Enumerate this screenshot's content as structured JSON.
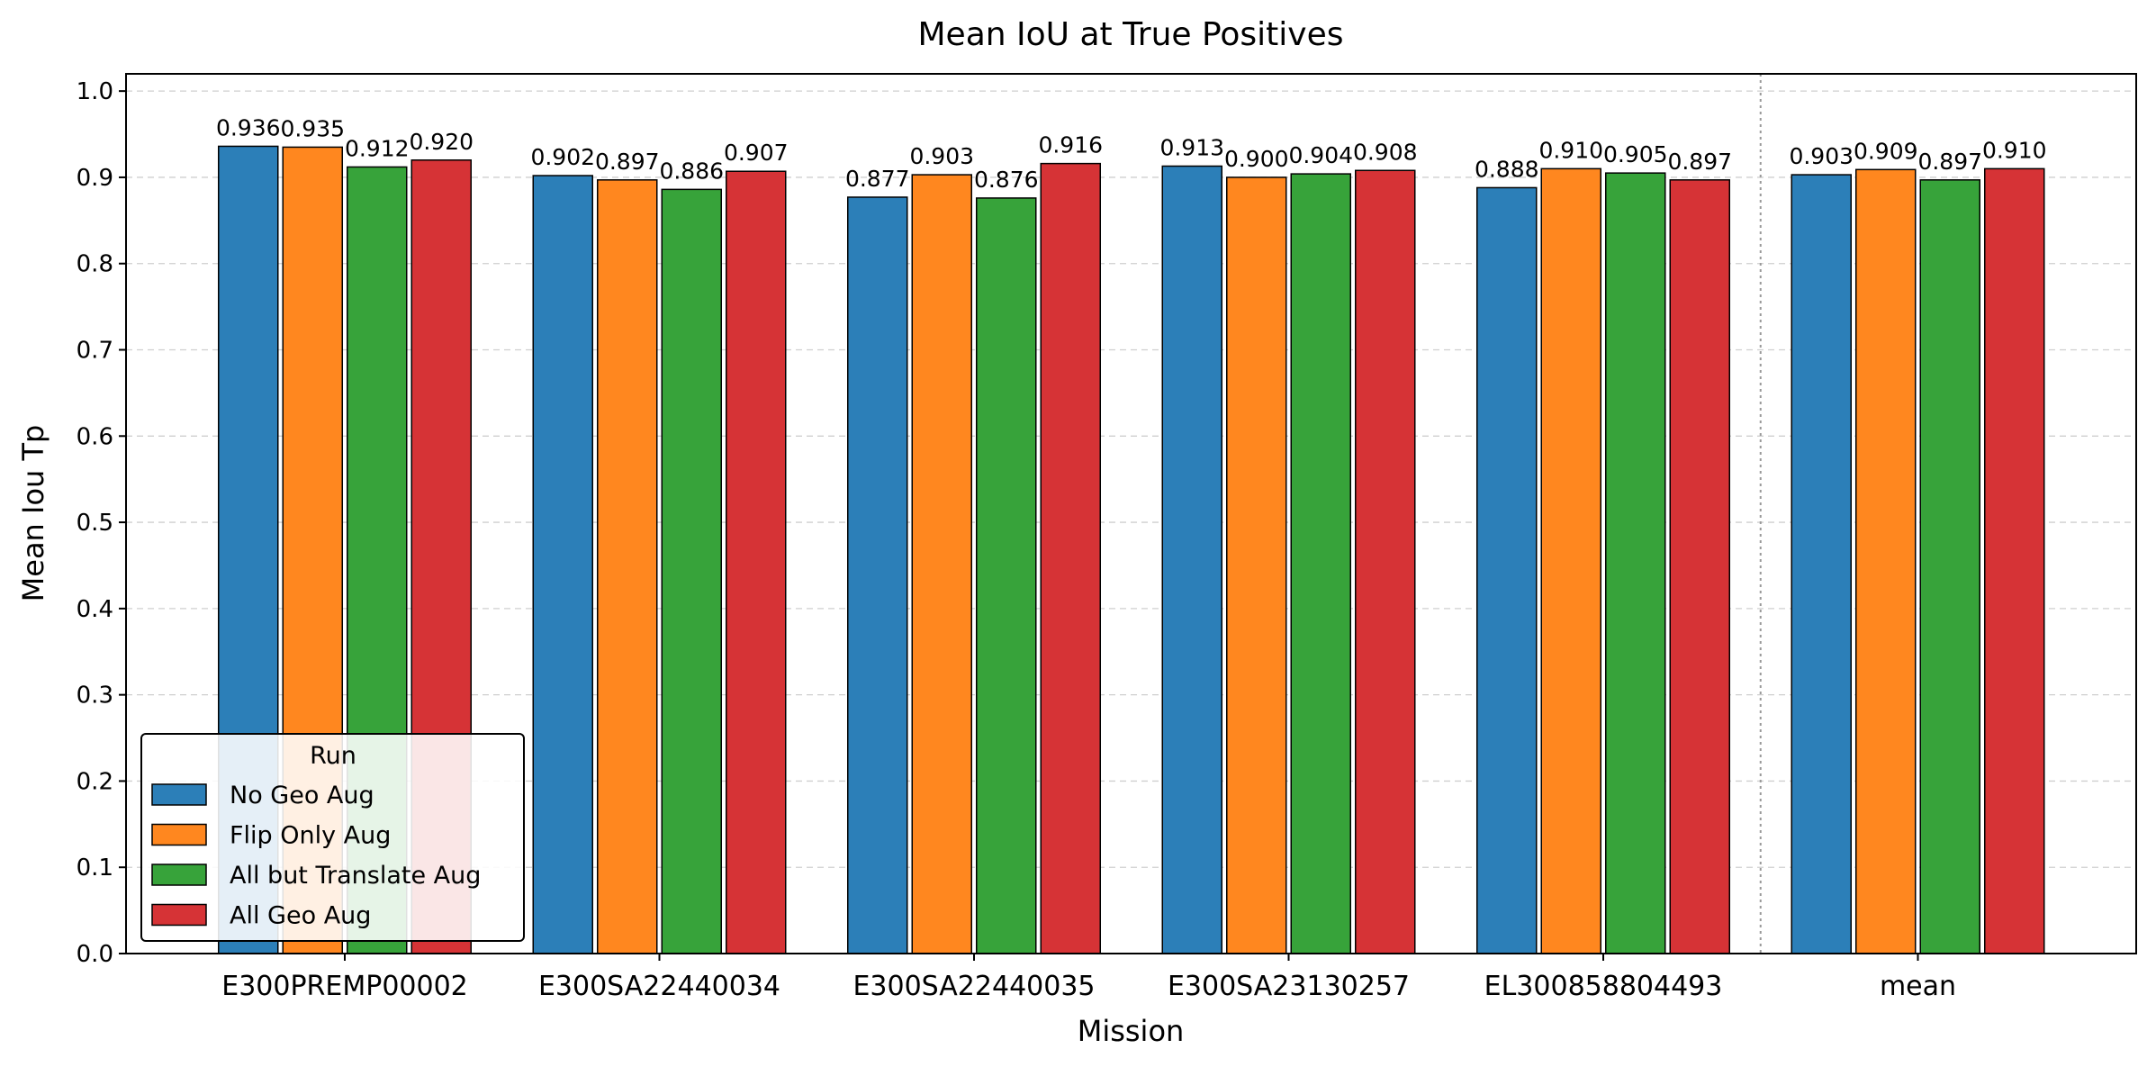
{
  "chart_data": {
    "type": "bar",
    "title": "Mean IoU at True Positives",
    "xlabel": "Mission",
    "ylabel": "Mean Iou Tp",
    "categories": [
      "E300PREMP00002",
      "E300SA22440034",
      "E300SA22440035",
      "E300SA23130257",
      "EL300858804493",
      "mean"
    ],
    "ylim": [
      0,
      1.02
    ],
    "yticks": [
      0.0,
      0.1,
      0.2,
      0.3,
      0.4,
      0.5,
      0.6,
      0.7,
      0.8,
      0.9,
      1.0
    ],
    "ytick_labels": [
      "0.0",
      "0.1",
      "0.2",
      "0.3",
      "0.4",
      "0.5",
      "0.6",
      "0.7",
      "0.8",
      "0.9",
      "1.0"
    ],
    "grid": "y-dashed",
    "separator_before_category": "mean",
    "legend": {
      "title": "Run",
      "placement": "lower-left"
    },
    "series": [
      {
        "name": "No Geo Aug",
        "color": "#2c7fb8",
        "values": [
          0.936,
          0.902,
          0.877,
          0.913,
          0.888,
          0.903
        ],
        "labels": [
          "0.936",
          "0.902",
          "0.877",
          "0.913",
          "0.888",
          "0.903"
        ]
      },
      {
        "name": "Flip Only Aug",
        "color": "#ff871f",
        "values": [
          0.935,
          0.897,
          0.903,
          0.9,
          0.91,
          0.909
        ],
        "labels": [
          "0.935",
          "0.897",
          "0.903",
          "0.900",
          "0.910",
          "0.909"
        ]
      },
      {
        "name": "All but Translate Aug",
        "color": "#37a33a",
        "values": [
          0.912,
          0.886,
          0.876,
          0.904,
          0.905,
          0.897
        ],
        "labels": [
          "0.912",
          "0.886",
          "0.876",
          "0.904",
          "0.905",
          "0.897"
        ]
      },
      {
        "name": "All Geo Aug",
        "color": "#d63336",
        "values": [
          0.92,
          0.907,
          0.916,
          0.908,
          0.897,
          0.91
        ],
        "labels": [
          "0.920",
          "0.907",
          "0.916",
          "0.908",
          "0.897",
          "0.910"
        ]
      }
    ]
  }
}
